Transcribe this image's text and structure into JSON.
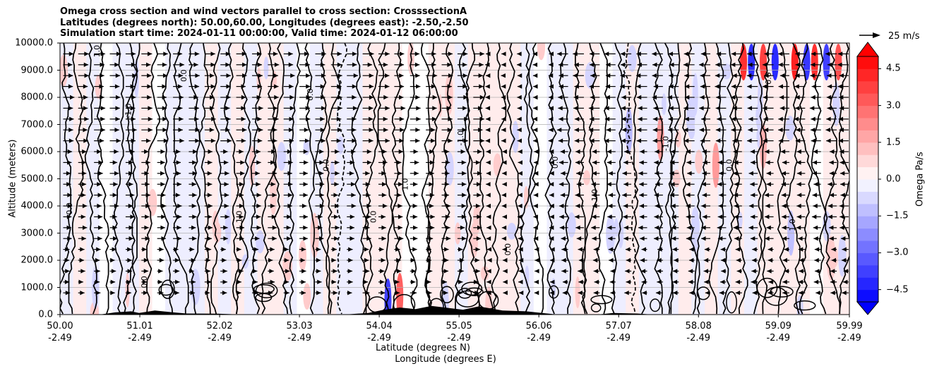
{
  "chart_data": {
    "type": "contour_cross_section",
    "title_lines": [
      "Omega cross section and wind vectors parallel to cross section: CrosssectionA",
      "Latitudes (degrees north): 50.00,60.00, Longitudes (degrees east): -2.50,-2.50",
      "Simulation start time: 2024-01-11 00:00:00, Valid time: 2024-01-12 06:00:00"
    ],
    "ylabel": "Altitude (meters)",
    "xlabel_lat": "Latitude (degrees N)",
    "xlabel_lon": "Longitude (degrees E)",
    "ylim": [
      0,
      10000
    ],
    "xlim": [
      50.0,
      59.99
    ],
    "y_ticks": [
      0,
      1000,
      2000,
      3000,
      4000,
      5000,
      6000,
      7000,
      8000,
      9000,
      10000
    ],
    "y_tick_labels": [
      "0.0",
      "1000.0",
      "2000.0",
      "3000.0",
      "4000.0",
      "5000.0",
      "6000.0",
      "7000.0",
      "8000.0",
      "9000.0",
      "10000.0"
    ],
    "x_ticks": [
      50.0,
      51.01,
      52.02,
      53.03,
      54.04,
      55.05,
      56.06,
      57.07,
      58.08,
      59.09,
      59.99
    ],
    "x_tick_labels": [
      {
        "lat": "50.00",
        "lon": "-2.49"
      },
      {
        "lat": "51.01",
        "lon": "-2.49"
      },
      {
        "lat": "52.02",
        "lon": "-2.49"
      },
      {
        "lat": "53.03",
        "lon": "-2.49"
      },
      {
        "lat": "54.04",
        "lon": "-2.49"
      },
      {
        "lat": "55.05",
        "lon": "-2.49"
      },
      {
        "lat": "56.06",
        "lon": "-2.49"
      },
      {
        "lat": "57.07",
        "lon": "-2.49"
      },
      {
        "lat": "58.08",
        "lon": "-2.49"
      },
      {
        "lat": "59.09",
        "lon": "-2.49"
      },
      {
        "lat": "59.99",
        "lon": "-2.49"
      }
    ],
    "grid": "horizontal",
    "colorbar": {
      "label": "Omega Pa/s",
      "range": [
        -5.0,
        5.0
      ],
      "ticks": [
        4.5,
        3.0,
        1.5,
        0.0,
        -1.5,
        -3.0,
        -4.5
      ],
      "tick_labels": [
        "4.5",
        "3.0",
        "1.5",
        "0.0",
        "−1.5",
        "−3.0",
        "−4.5"
      ],
      "levels": 20,
      "colormap": "bwr",
      "extend": "both"
    },
    "contour_labels": [
      "0.0",
      "1.0",
      "-1.0",
      "0.0",
      "0.0",
      "1.0",
      "0.0",
      "0.0",
      "0.0",
      "1.0",
      "-1.0",
      "0.0"
    ],
    "quiver_key": "25 m/s",
    "colors": {
      "positive": "#ff0000",
      "negative": "#0000ff",
      "terrain": "#000000",
      "grid": "#b0b0b0"
    }
  }
}
